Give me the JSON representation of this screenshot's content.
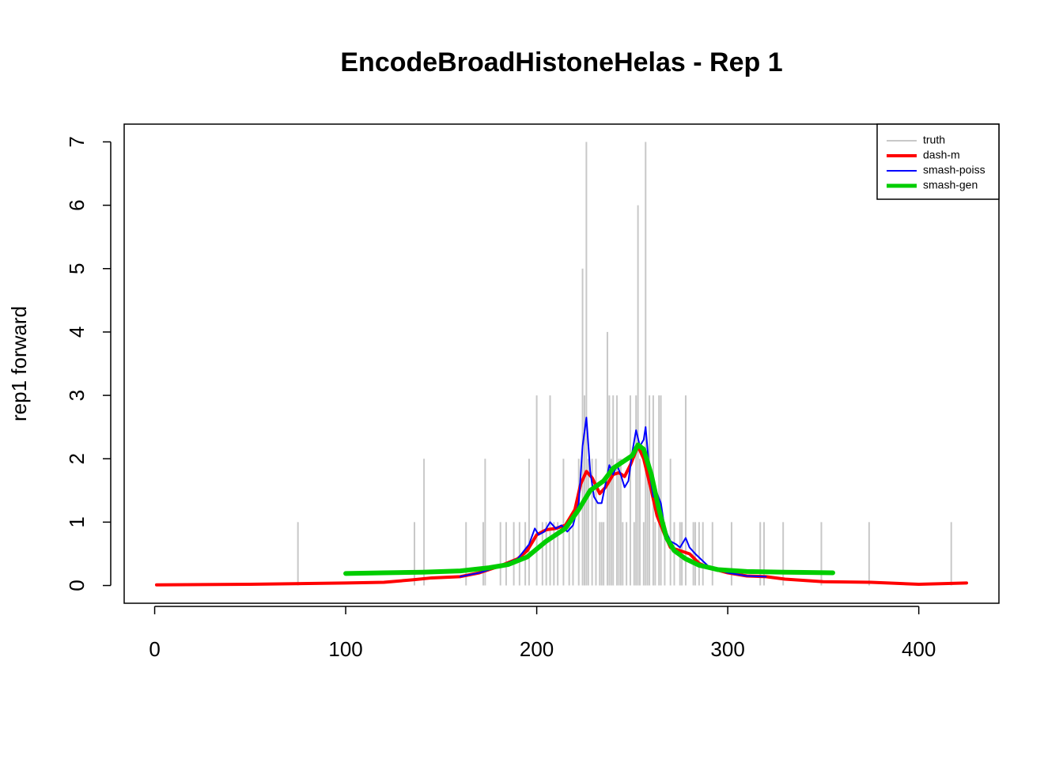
{
  "chart_data": {
    "type": "line",
    "title": "EncodeBroadHistoneHelas - Rep 1",
    "ylabel": "rep1 forward",
    "xlim": [
      -15.96,
      441.96
    ],
    "xticks": [
      0,
      100,
      200,
      300,
      400
    ],
    "ylim": [
      -0.28,
      7.28
    ],
    "yticks": [
      0,
      1,
      2,
      3,
      4,
      5,
      6,
      7
    ],
    "legend": "topright",
    "series": [
      {
        "name": "truth",
        "color": "#c8c8c8",
        "style": "h",
        "width": 2,
        "x": [
          75,
          136,
          141,
          163,
          172,
          173,
          181,
          184,
          188,
          191,
          194,
          196,
          200,
          203,
          205,
          207,
          209,
          211,
          214,
          217,
          219,
          222,
          224,
          225,
          226,
          227,
          229,
          231,
          233,
          234,
          235,
          237,
          238,
          239,
          240,
          242,
          243,
          244,
          245,
          247,
          249,
          251,
          252,
          253,
          254,
          256,
          257,
          258,
          259,
          261,
          262,
          264,
          265,
          267,
          270,
          272,
          275,
          276,
          278,
          282,
          283,
          285,
          287,
          292,
          302,
          317,
          319,
          329,
          349,
          374,
          417
        ],
        "values": [
          1,
          1,
          2,
          1,
          1,
          2,
          1,
          1,
          1,
          1,
          1,
          2,
          3,
          1,
          1,
          3,
          1,
          1,
          2,
          1,
          1,
          2,
          5,
          3,
          7,
          2,
          2,
          2,
          1,
          1,
          1,
          4,
          3,
          2,
          3,
          3,
          2,
          2,
          1,
          1,
          3,
          1,
          3,
          6,
          2,
          1,
          7,
          2,
          3,
          3,
          1,
          3,
          3,
          1,
          2,
          1,
          1,
          1,
          3,
          1,
          1,
          1,
          1,
          1,
          1,
          1,
          1,
          1,
          1,
          1,
          1
        ]
      },
      {
        "name": "dash-m",
        "color": "#ff0000",
        "style": "l",
        "width": 4,
        "x": [
          1,
          50,
          100,
          120,
          135,
          145,
          160,
          170,
          180,
          190,
          195,
          200,
          205,
          210,
          215,
          220,
          223,
          226,
          229,
          233,
          236,
          240,
          243,
          246,
          249,
          253,
          256,
          260,
          263,
          267,
          270,
          275,
          280,
          285,
          290,
          300,
          310,
          320,
          330,
          340,
          350,
          375,
          400,
          425
        ],
        "values": [
          0.01,
          0.02,
          0.04,
          0.05,
          0.09,
          0.12,
          0.14,
          0.2,
          0.3,
          0.42,
          0.55,
          0.8,
          0.88,
          0.9,
          0.95,
          1.2,
          1.6,
          1.8,
          1.7,
          1.45,
          1.55,
          1.75,
          1.78,
          1.72,
          1.9,
          2.2,
          2.0,
          1.5,
          1.1,
          0.8,
          0.6,
          0.55,
          0.5,
          0.35,
          0.28,
          0.2,
          0.15,
          0.14,
          0.1,
          0.08,
          0.06,
          0.05,
          0.02,
          0.04
        ]
      },
      {
        "name": "smash-poiss",
        "color": "#0000ff",
        "style": "l",
        "width": 2,
        "x": [
          160,
          170,
          180,
          190,
          196,
          199,
          201,
          204,
          207,
          210,
          213,
          216,
          219,
          222,
          224,
          226,
          228,
          230,
          232,
          234,
          236,
          238,
          240,
          242,
          244,
          246,
          248,
          250,
          252,
          254,
          256,
          257,
          259,
          261,
          263,
          265,
          267,
          270,
          273,
          275,
          278,
          280,
          283,
          290,
          300,
          310,
          320
        ],
        "values": [
          0.14,
          0.2,
          0.3,
          0.42,
          0.65,
          0.9,
          0.8,
          0.85,
          1.0,
          0.9,
          0.95,
          0.85,
          0.95,
          1.3,
          2.2,
          2.65,
          1.8,
          1.4,
          1.3,
          1.3,
          1.6,
          1.9,
          1.75,
          1.9,
          1.75,
          1.55,
          1.65,
          2.1,
          2.45,
          2.2,
          2.3,
          2.5,
          1.8,
          1.4,
          1.45,
          1.3,
          0.9,
          0.7,
          0.65,
          0.6,
          0.75,
          0.6,
          0.5,
          0.3,
          0.2,
          0.15,
          0.14
        ]
      },
      {
        "name": "smash-gen",
        "color": "#00cd00",
        "style": "l",
        "width": 6,
        "x": [
          100,
          120,
          140,
          160,
          175,
          185,
          195,
          205,
          215,
          222,
          228,
          235,
          240,
          245,
          250,
          253,
          256,
          260,
          264,
          268,
          272,
          278,
          285,
          295,
          310,
          330,
          355
        ],
        "values": [
          0.19,
          0.2,
          0.21,
          0.23,
          0.28,
          0.33,
          0.45,
          0.7,
          0.9,
          1.2,
          1.5,
          1.65,
          1.85,
          1.95,
          2.05,
          2.22,
          2.15,
          1.75,
          1.2,
          0.75,
          0.55,
          0.42,
          0.32,
          0.25,
          0.22,
          0.21,
          0.2
        ]
      }
    ]
  }
}
